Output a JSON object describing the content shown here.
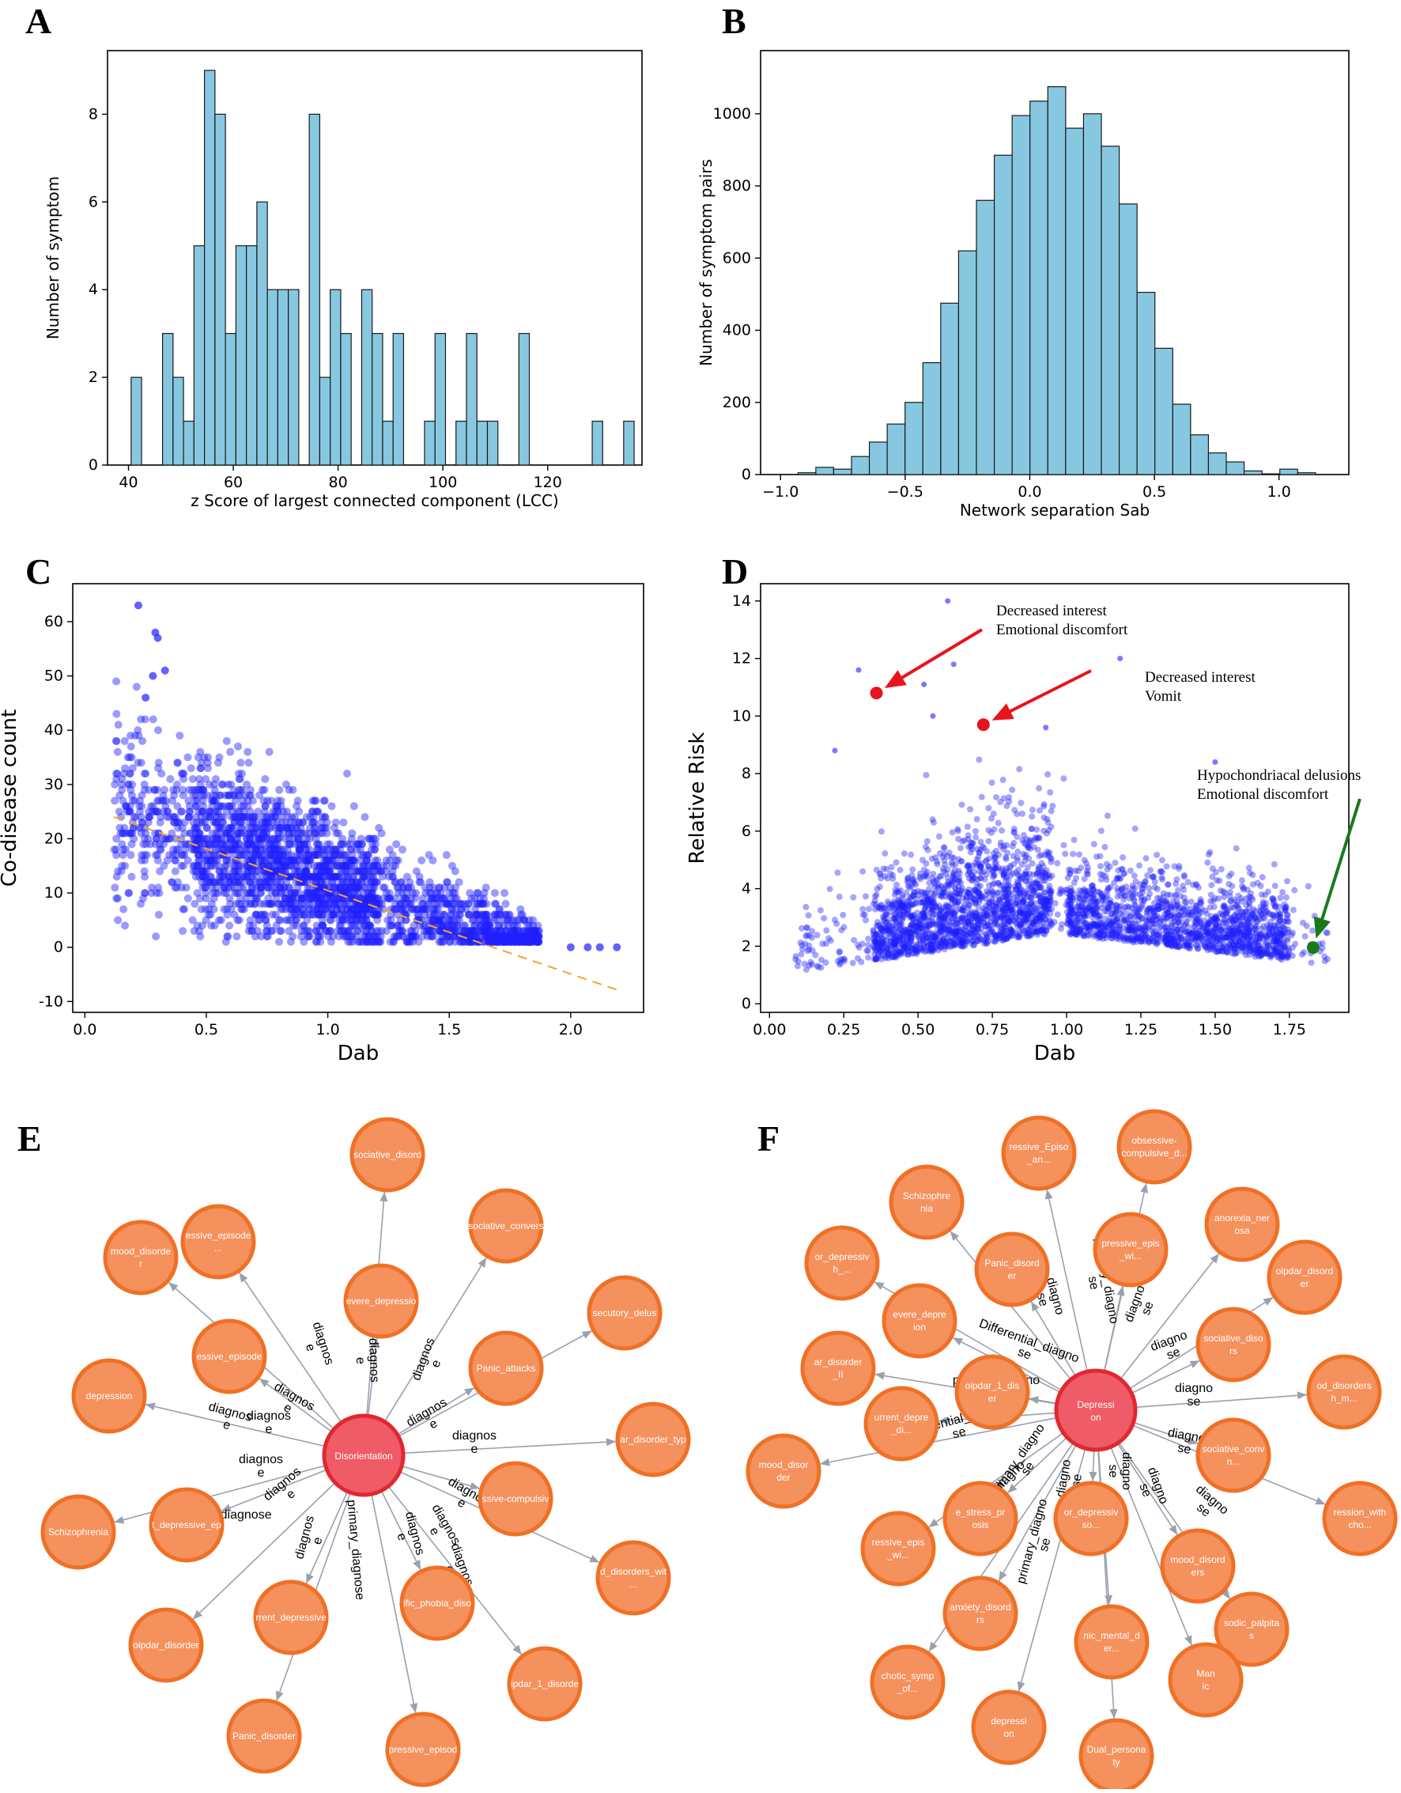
{
  "panels": {
    "a": "A",
    "b": "B",
    "c": "C",
    "d": "D",
    "e": "E",
    "f": "F"
  },
  "colors": {
    "hist_fill": "#87c8e0",
    "hist_edge": "#1a1a1a",
    "scatter": "#1f1fff",
    "trend": "#f5a623",
    "annot_red": "#e8141c",
    "annot_green": "#1a7a1a",
    "node_orange": "#f4915c",
    "node_orange_edge": "#f07025",
    "node_center": "#ef5b66",
    "node_center_edge": "#e02830",
    "edge_gray": "#9aa0ac"
  },
  "chart_data": [
    {
      "id": "A",
      "type": "bar",
      "title": "",
      "xlabel": "z Score of largest connected component (LCC)",
      "ylabel": "Number of symptom",
      "xlim": [
        36,
        138
      ],
      "ylim": [
        0,
        9.45
      ],
      "xticks": [
        40,
        60,
        80,
        100,
        120
      ],
      "yticks": [
        0,
        2,
        4,
        6,
        8
      ],
      "bin_start": 40.5,
      "bin_width": 2.0,
      "values": [
        2,
        0,
        0,
        3,
        2,
        1,
        5,
        9,
        8,
        3,
        5,
        5,
        6,
        4,
        4,
        4,
        0,
        8,
        2,
        4,
        3,
        0,
        4,
        3,
        1,
        3,
        0,
        0,
        1,
        3,
        0,
        1,
        3,
        1,
        1,
        0,
        0,
        3,
        0,
        0,
        0,
        0,
        0,
        0,
        1,
        0,
        0,
        1
      ]
    },
    {
      "id": "B",
      "type": "bar",
      "title": "",
      "xlabel": "Network separation Sab",
      "ylabel": "Number of symptom pairs",
      "xlim": [
        -1.08,
        1.28
      ],
      "ylim": [
        0,
        1175
      ],
      "xticks": [
        -1.0,
        -0.5,
        0.0,
        0.5,
        1.0
      ],
      "xtick_labels": [
        "−1.0",
        "−0.5",
        "0.0",
        "0.5",
        "1.0"
      ],
      "yticks": [
        0,
        200,
        400,
        600,
        800,
        1000
      ],
      "bin_start": -0.93,
      "bin_width": 0.0716,
      "values": [
        5,
        20,
        15,
        50,
        90,
        140,
        200,
        310,
        475,
        620,
        760,
        885,
        995,
        1035,
        1075,
        960,
        1000,
        910,
        750,
        505,
        350,
        195,
        110,
        60,
        35,
        10,
        2,
        15,
        5
      ]
    },
    {
      "id": "C",
      "type": "scatter",
      "title": "",
      "xlabel": "Dab",
      "ylabel": "Co-disease count",
      "xlim": [
        -0.05,
        2.3
      ],
      "ylim": [
        -12,
        67
      ],
      "xticks": [
        0.0,
        0.5,
        1.0,
        1.5,
        2.0
      ],
      "yticks": [
        -10,
        0,
        10,
        20,
        30,
        40,
        50,
        60
      ],
      "trend": {
        "x": [
          0.12,
          2.2
        ],
        "y": [
          24,
          -8
        ],
        "style": "dashed"
      },
      "highlight_points": [
        [
          0.22,
          63
        ],
        [
          0.29,
          58
        ],
        [
          0.3,
          57
        ],
        [
          0.33,
          51
        ],
        [
          0.28,
          50
        ],
        [
          0.25,
          46
        ],
        [
          2.0,
          0
        ],
        [
          2.07,
          0
        ],
        [
          2.12,
          0
        ],
        [
          2.19,
          0
        ]
      ]
    },
    {
      "id": "D",
      "type": "scatter",
      "title": "",
      "xlabel": "Dab",
      "ylabel": "Relative Risk",
      "xlim": [
        -0.03,
        1.95
      ],
      "ylim": [
        -0.3,
        14.6
      ],
      "xticks": [
        0.0,
        0.25,
        0.5,
        0.75,
        1.0,
        1.25,
        1.5,
        1.75
      ],
      "xtick_labels": [
        "0.00",
        "0.25",
        "0.50",
        "0.75",
        "1.00",
        "1.25",
        "1.50",
        "1.75"
      ],
      "yticks": [
        0,
        2,
        4,
        6,
        8,
        10,
        12,
        14
      ],
      "annotations": [
        {
          "lines": [
            "Decreased interest",
            "Emotional discomfort"
          ],
          "point": [
            0.36,
            10.8
          ],
          "color": "red"
        },
        {
          "lines": [
            "Decreased interest",
            "Vomit"
          ],
          "point": [
            0.72,
            9.7
          ],
          "color": "red"
        },
        {
          "lines": [
            "Hypochondriacal delusions",
            "Emotional discomfort"
          ],
          "point": [
            1.83,
            1.95
          ],
          "color": "green"
        }
      ],
      "highlight_points": [
        [
          0.6,
          14.0
        ],
        [
          1.18,
          12.0
        ],
        [
          0.3,
          11.6
        ],
        [
          0.52,
          11.1
        ],
        [
          0.62,
          11.8
        ],
        [
          0.93,
          9.6
        ],
        [
          1.5,
          8.4
        ],
        [
          0.22,
          8.8
        ],
        [
          0.55,
          10.0
        ]
      ]
    }
  ],
  "network_e": {
    "center": "Disorientation",
    "nodes": [
      "sociative_disord",
      "essive_episode\n...",
      "mood_disorde\nr",
      "evere_depressio",
      "sociative_convers",
      "secutory_delus",
      "essive_episode",
      "Panic_attacks",
      "depression",
      "ar_disorder_typ",
      "t_depressive_ep",
      "ssive-compulsiv",
      "Schizophrenia",
      "d_disorders_wit\n...",
      "rrent_depressive",
      "ific_phobia_diso",
      "oipdar_disorder",
      "ipdar_1_disorde",
      "Panic_disorder",
      "pressive_episod"
    ],
    "edge_labels": [
      "diagnos\ne",
      "diagnos\ne",
      "diagnos\ne",
      "diagnos\ne",
      "diagnos\ne",
      "diagnos\ne",
      "diagnos\ne",
      "diagnos\ne",
      "diagnos\ne",
      "diagnos\ne",
      "diagnos\ne",
      "diagnos\ne",
      "diagnos\ne",
      "primary_diagnose",
      "primary_diagnose",
      "diagnos\ne",
      "diagnos\ne"
    ]
  },
  "network_f": {
    "center": "Depressi\non",
    "nodes": [
      "ressive_Episo\n_an...",
      "obsessive-\ncompulsive_d...",
      "Schizophre\nnia",
      "pressive_epis\n_wi...",
      "anorexia_ner\nosa",
      "or_depressiv\nh_...",
      "Panic_disord\ner",
      "oipdar_disord\ner",
      "evere_depre\nion",
      "sociative_diso\nrs",
      "ar_disorder\n_II",
      "oipdar_1_dis\ner",
      "od_disorders\nh_m...",
      "urrent_depre\n_di...",
      "sociative_conv\nn...",
      "mood_disor\nder",
      "ression_with\ncho...",
      "ressive_epis\n_wi...",
      "e_stress_pr\nosis",
      "or_depressiv\nso...",
      "mood_disord\ners",
      "anxiety_disord\nrs",
      "sodic_palpita\ns",
      "chotic_symp\n_of...",
      "nic_mental_d\ner...",
      "Man\nic",
      "depressi\non",
      "Dual_persona\nty"
    ],
    "edge_labels": [
      "diagno\nse",
      "primary_diagno\nse",
      "diagno\nse",
      "Differential_diagno\nse",
      "diagno\nse",
      "primary_diagno\nse",
      "diagno\nse",
      "Differential_diagno\nse",
      "primary_diagno\nse",
      "diagno\nse",
      "diagno\nse",
      "diagno\nse",
      "diagno\nse",
      "primary_diagno\nse",
      "Differential_diagno\nse",
      "diagno\nse"
    ]
  }
}
